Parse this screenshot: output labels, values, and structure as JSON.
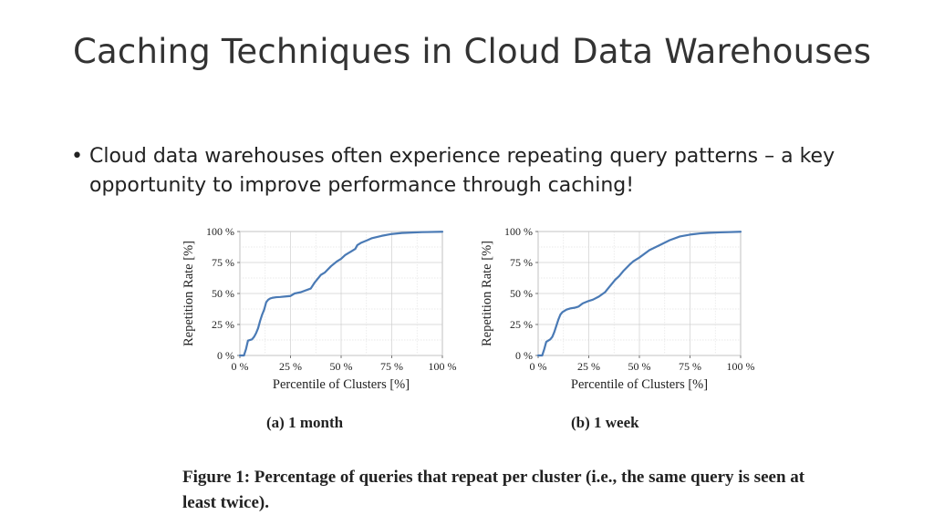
{
  "slide": {
    "title": "Caching Techniques in Cloud Data Warehouses",
    "bullet": "Cloud data warehouses often experience repeating query patterns – a key opportunity to improve performance through caching!",
    "figure_caption": "Figure 1: Percentage of queries that repeat per cluster (i.e., the same query is seen at least twice)."
  },
  "chart_data": [
    {
      "type": "line",
      "subcaption": "(a) 1 month",
      "xlabel": "Percentile of Clusters [%]",
      "ylabel": "Repetition Rate [%]",
      "xlim": [
        0,
        100
      ],
      "ylim": [
        0,
        100
      ],
      "xticks": [
        "0 %",
        "25 %",
        "50 %",
        "75 %",
        "100 %"
      ],
      "yticks": [
        "0 %",
        "25 %",
        "50 %",
        "75 %",
        "100 %"
      ],
      "grid": true,
      "color": "#4a7ab5",
      "x": [
        0,
        2,
        3,
        4,
        6,
        7,
        8,
        9,
        10,
        11,
        12,
        13,
        14,
        15,
        16,
        18,
        20,
        22,
        25,
        27,
        30,
        35,
        37,
        40,
        42,
        45,
        48,
        50,
        52,
        55,
        57,
        58,
        60,
        63,
        65,
        70,
        75,
        80,
        85,
        90,
        100
      ],
      "y": [
        0,
        0,
        5,
        12,
        13,
        15,
        18,
        22,
        28,
        33,
        37,
        43,
        45,
        46,
        46.5,
        47,
        47.2,
        47.5,
        48,
        50,
        51,
        54,
        59,
        65,
        67,
        72,
        76,
        78,
        81,
        84,
        86,
        89,
        91,
        93,
        94.5,
        96.5,
        98,
        98.8,
        99.2,
        99.5,
        99.8
      ]
    },
    {
      "type": "line",
      "subcaption": "(b) 1 week",
      "xlabel": "Percentile of Clusters [%]",
      "ylabel": "Repetition Rate [%]",
      "xlim": [
        0,
        100
      ],
      "ylim": [
        0,
        100
      ],
      "xticks": [
        "0 %",
        "25 %",
        "50 %",
        "75 %",
        "100 %"
      ],
      "yticks": [
        "0 %",
        "25 %",
        "50 %",
        "75 %",
        "100 %"
      ],
      "grid": true,
      "color": "#4a7ab5",
      "x": [
        0,
        2,
        3,
        4,
        6,
        7,
        8,
        9,
        10,
        11,
        12,
        14,
        16,
        18,
        20,
        22,
        25,
        27,
        30,
        33,
        35,
        37,
        38,
        40,
        42,
        45,
        47,
        50,
        55,
        60,
        65,
        70,
        75,
        80,
        85,
        90,
        100
      ],
      "y": [
        0,
        0,
        5,
        11,
        13,
        15,
        19,
        24,
        29,
        33,
        35,
        37,
        38,
        38.5,
        39.5,
        42,
        44,
        45,
        47.5,
        51,
        55,
        59,
        61,
        64,
        68,
        73,
        76,
        79,
        85,
        89,
        93,
        96,
        97.5,
        98.5,
        99,
        99.3,
        99.8
      ]
    }
  ]
}
